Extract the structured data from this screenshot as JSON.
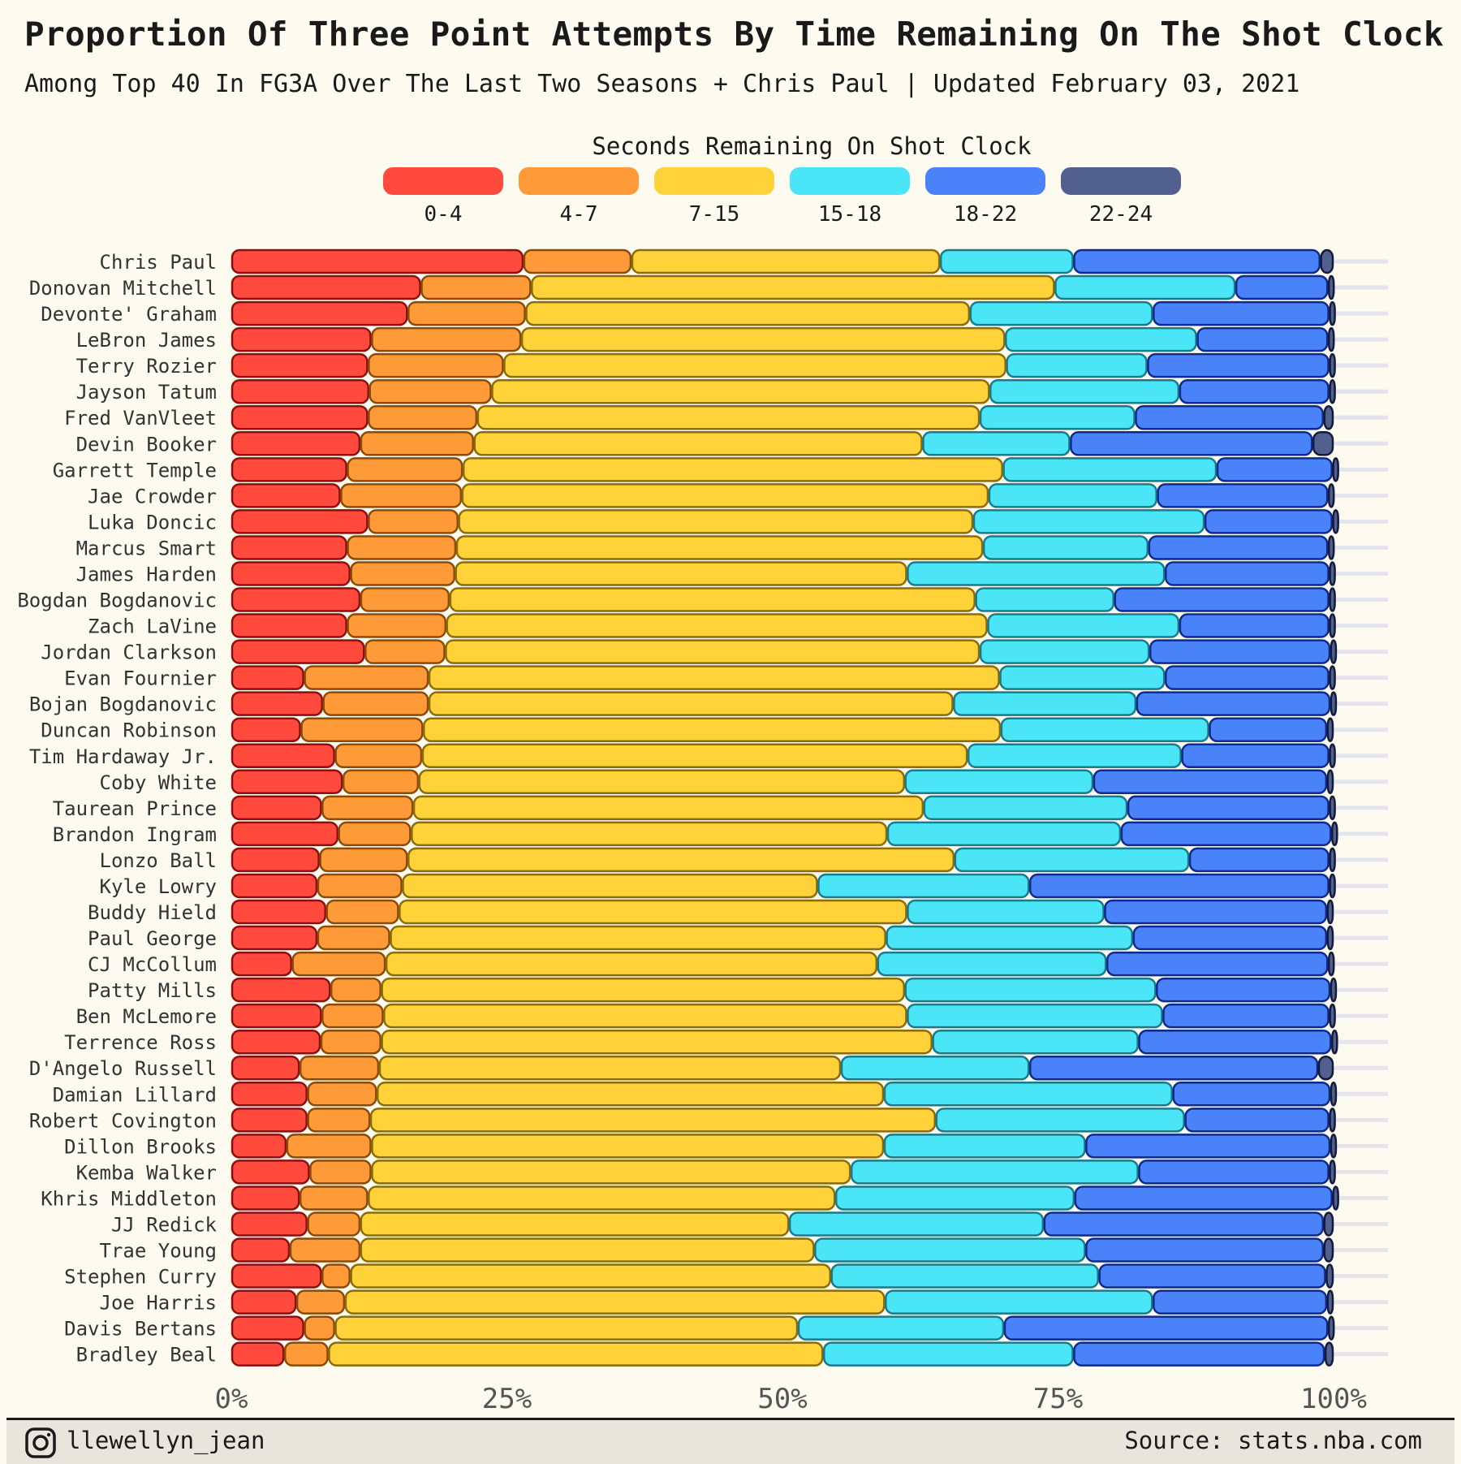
{
  "header": {
    "title": "Proportion Of Three Point Attempts By Time Remaining On The Shot Clock",
    "subtitle": "Among Top 40 In FG3A Over The Last Two Seasons + Chris Paul | Updated February 03, 2021"
  },
  "footer": {
    "handle": "llewellyn_jean",
    "handle_icon": "instagram-icon",
    "source": "Source: stats.nba.com"
  },
  "chart_data": {
    "type": "bar",
    "orientation": "horizontal",
    "stacked": true,
    "legend_title": "Seconds Remaining On Shot Clock",
    "legend_position": "top",
    "x_ticks": [
      "0%",
      "25%",
      "50%",
      "75%",
      "100%"
    ],
    "xlim": [
      0,
      100
    ],
    "grid": false,
    "colors": [
      "#ff4a3d",
      "#ff9a38",
      "#ffd23a",
      "#4ae5f7",
      "#4a82fa",
      "#52608f"
    ],
    "series_names": [
      "0-4",
      "4-7",
      "7-15",
      "15-18",
      "18-22",
      "22-24"
    ],
    "players": [
      {
        "name": "Chris Paul",
        "values": [
          26.5,
          9.8,
          28.0,
          12.1,
          22.4,
          1.2
        ]
      },
      {
        "name": "Donovan Mitchell",
        "values": [
          17.2,
          10.0,
          47.5,
          16.4,
          8.4,
          0.5
        ]
      },
      {
        "name": "Devonte' Graham",
        "values": [
          16.0,
          10.7,
          40.3,
          16.6,
          16.0,
          0.4
        ]
      },
      {
        "name": "LeBron James",
        "values": [
          12.7,
          13.6,
          43.9,
          17.4,
          11.9,
          0.5
        ]
      },
      {
        "name": "Terry Rozier",
        "values": [
          12.4,
          12.3,
          45.6,
          12.8,
          16.5,
          0.4
        ]
      },
      {
        "name": "Jayson Tatum",
        "values": [
          12.5,
          11.1,
          45.2,
          17.2,
          13.6,
          0.4
        ]
      },
      {
        "name": "Fred VanVleet",
        "values": [
          12.4,
          9.9,
          45.6,
          14.1,
          17.1,
          0.9
        ]
      },
      {
        "name": "Devin Booker",
        "values": [
          11.7,
          10.3,
          40.7,
          13.4,
          22.0,
          1.9
        ]
      },
      {
        "name": "Garrett Temple",
        "values": [
          10.5,
          10.5,
          49.0,
          19.4,
          10.5,
          0.1
        ]
      },
      {
        "name": "Jae Crowder",
        "values": [
          9.9,
          11.0,
          47.8,
          15.3,
          15.5,
          0.5
        ]
      },
      {
        "name": "Luka Doncic",
        "values": [
          12.4,
          8.2,
          46.7,
          21.0,
          11.6,
          0.1
        ]
      },
      {
        "name": "Marcus Smart",
        "values": [
          10.5,
          9.9,
          47.8,
          15.0,
          16.3,
          0.5
        ]
      },
      {
        "name": "James Harden",
        "values": [
          10.8,
          9.5,
          41.0,
          23.4,
          14.9,
          0.4
        ]
      },
      {
        "name": "Bogdan Bogdanovic",
        "values": [
          11.7,
          8.1,
          47.7,
          12.6,
          19.5,
          0.4
        ]
      },
      {
        "name": "Zach LaVine",
        "values": [
          10.5,
          9.0,
          49.1,
          17.4,
          13.6,
          0.4
        ]
      },
      {
        "name": "Jordan Clarkson",
        "values": [
          12.1,
          7.3,
          48.5,
          15.4,
          16.4,
          0.3
        ]
      },
      {
        "name": "Evan Fournier",
        "values": [
          6.6,
          11.3,
          51.8,
          15.0,
          14.9,
          0.4
        ]
      },
      {
        "name": "Bojan Bogdanovic",
        "values": [
          8.3,
          9.6,
          47.6,
          16.6,
          17.6,
          0.3
        ]
      },
      {
        "name": "Duncan Robinson",
        "values": [
          6.3,
          11.1,
          52.4,
          18.9,
          10.7,
          0.6
        ]
      },
      {
        "name": "Tim Hardaway Jr.",
        "values": [
          9.4,
          7.9,
          49.5,
          19.4,
          13.4,
          0.4
        ]
      },
      {
        "name": "Coby White",
        "values": [
          10.1,
          6.9,
          44.1,
          17.1,
          21.2,
          0.6
        ]
      },
      {
        "name": "Taurean Prince",
        "values": [
          8.2,
          8.3,
          46.3,
          18.5,
          18.3,
          0.4
        ]
      },
      {
        "name": "Brandon Ingram",
        "values": [
          9.7,
          6.6,
          43.2,
          21.2,
          19.1,
          0.2
        ]
      },
      {
        "name": "Lonzo Ball",
        "values": [
          8.0,
          8.0,
          49.6,
          21.3,
          12.7,
          0.4
        ]
      },
      {
        "name": "Kyle Lowry",
        "values": [
          7.8,
          7.7,
          37.7,
          19.2,
          27.2,
          0.4
        ]
      },
      {
        "name": "Buddy Hield",
        "values": [
          8.6,
          6.6,
          46.1,
          17.9,
          20.2,
          0.6
        ]
      },
      {
        "name": "Paul George",
        "values": [
          7.8,
          6.6,
          45.0,
          22.4,
          17.6,
          0.6
        ]
      },
      {
        "name": "CJ McCollum",
        "values": [
          5.5,
          8.5,
          44.6,
          20.8,
          20.1,
          0.5
        ]
      },
      {
        "name": "Patty Mills",
        "values": [
          9.0,
          4.6,
          47.5,
          22.8,
          15.8,
          0.3
        ]
      },
      {
        "name": "Ben McLemore",
        "values": [
          8.2,
          5.6,
          47.5,
          23.2,
          15.1,
          0.4
        ]
      },
      {
        "name": "Terrence Ross",
        "values": [
          8.1,
          5.5,
          50.0,
          18.7,
          17.5,
          0.2
        ]
      },
      {
        "name": "D'Angelo Russell",
        "values": [
          6.2,
          7.2,
          41.9,
          17.1,
          26.2,
          1.4
        ]
      },
      {
        "name": "Damian Lillard",
        "values": [
          6.9,
          6.3,
          46.0,
          26.2,
          14.3,
          0.3
        ]
      },
      {
        "name": "Robert Covington",
        "values": [
          6.9,
          5.7,
          51.3,
          22.6,
          13.1,
          0.4
        ]
      },
      {
        "name": "Dillon Brooks",
        "values": [
          5.0,
          7.7,
          46.5,
          18.3,
          22.2,
          0.3
        ]
      },
      {
        "name": "Kemba Walker",
        "values": [
          7.1,
          5.6,
          43.5,
          26.1,
          17.3,
          0.4
        ]
      },
      {
        "name": "Khris Middleton",
        "values": [
          6.2,
          6.2,
          42.4,
          21.7,
          23.4,
          0.1
        ]
      },
      {
        "name": "JJ Redick",
        "values": [
          6.9,
          4.8,
          38.9,
          23.1,
          25.4,
          0.9
        ]
      },
      {
        "name": "Trae Young",
        "values": [
          5.3,
          6.4,
          41.2,
          24.6,
          21.6,
          0.9
        ]
      },
      {
        "name": "Stephen Curry",
        "values": [
          8.2,
          2.6,
          43.6,
          24.3,
          20.6,
          0.7
        ]
      },
      {
        "name": "Joe Harris",
        "values": [
          5.9,
          4.4,
          49.0,
          24.3,
          15.8,
          0.6
        ]
      },
      {
        "name": "Davis Bertans",
        "values": [
          6.6,
          2.8,
          42.0,
          18.7,
          29.4,
          0.5
        ]
      },
      {
        "name": "Bradley Beal",
        "values": [
          4.8,
          4.0,
          44.9,
          22.7,
          22.8,
          0.8
        ]
      }
    ]
  }
}
